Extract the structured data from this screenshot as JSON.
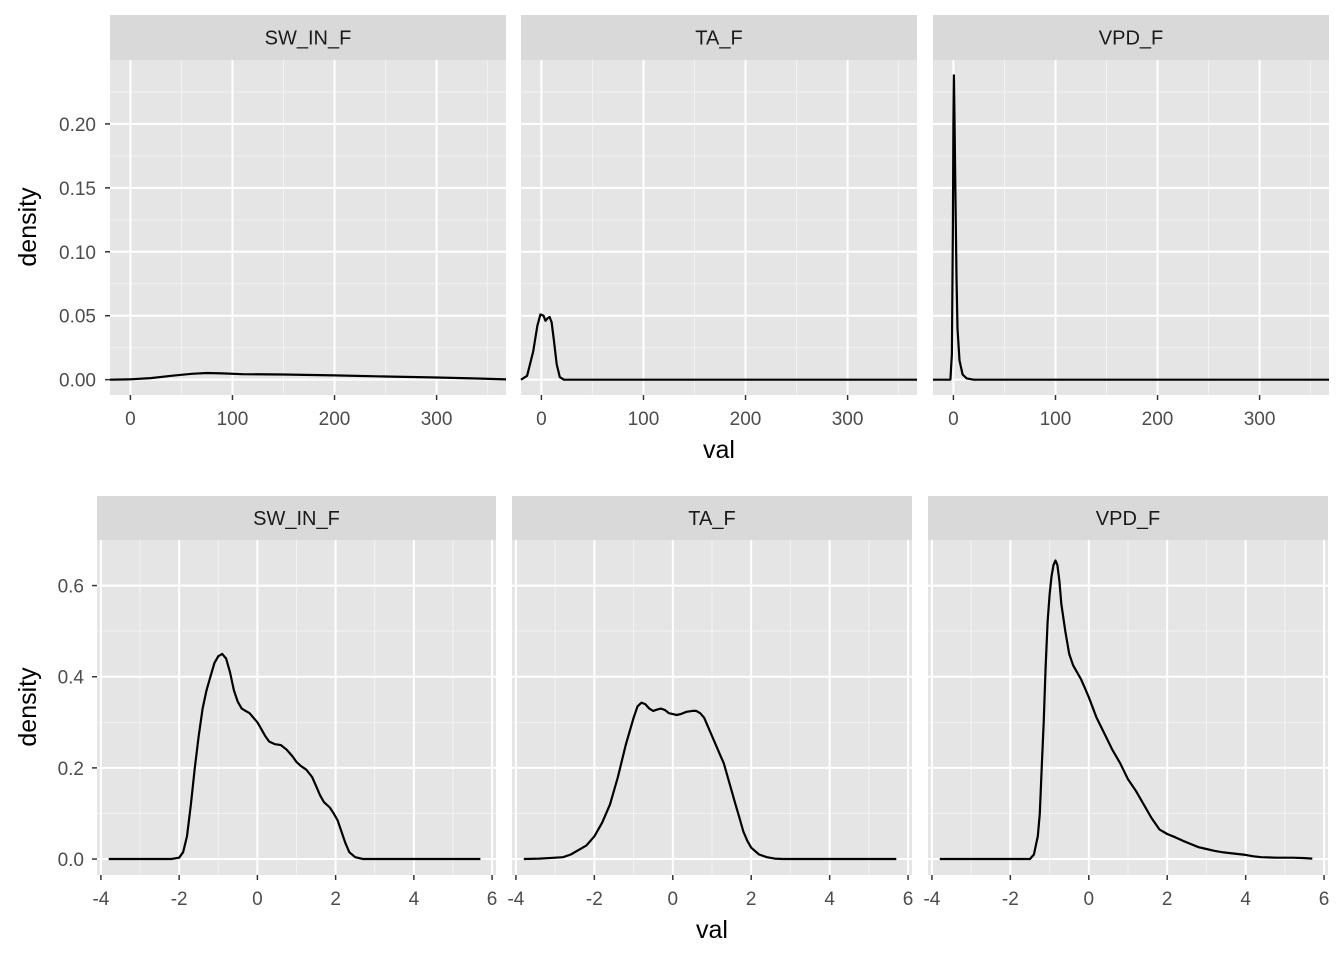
{
  "colors": {
    "panel_background": "#e5e5e5",
    "strip_background": "#d9d9d9",
    "grid_major": "#ffffff",
    "grid_minor": "#f2f2f2",
    "line": "#000000"
  },
  "chart_data": [
    {
      "type": "line",
      "title": "",
      "xlabel": "val",
      "ylabel": "density",
      "xlim": [
        -20,
        368
      ],
      "ylim": [
        -0.012,
        0.25
      ],
      "x_ticks": [
        0,
        100,
        200,
        300
      ],
      "x_tick_labels": [
        "0",
        "100",
        "200",
        "300"
      ],
      "y_ticks": [
        0,
        0.05,
        0.1,
        0.15,
        0.2
      ],
      "y_tick_labels": [
        "0.00",
        "0.05",
        "0.10",
        "0.15",
        "0.20"
      ],
      "grid": true,
      "legend": "none",
      "facets": [
        {
          "strip": "SW_IN_F",
          "points": [
            [
              -20,
              0
            ],
            [
              0,
              0.0003
            ],
            [
              20,
              0.0012
            ],
            [
              40,
              0.003
            ],
            [
              60,
              0.0046
            ],
            [
              75,
              0.0052
            ],
            [
              90,
              0.0049
            ],
            [
              110,
              0.0043
            ],
            [
              150,
              0.004
            ],
            [
              200,
              0.0033
            ],
            [
              250,
              0.0025
            ],
            [
              300,
              0.0017
            ],
            [
              340,
              0.0009
            ],
            [
              368,
              0.0002
            ]
          ]
        },
        {
          "strip": "TA_F",
          "points": [
            [
              -20,
              0
            ],
            [
              -14,
              0.003
            ],
            [
              -8,
              0.022
            ],
            [
              -4,
              0.042
            ],
            [
              -1,
              0.051
            ],
            [
              2,
              0.05
            ],
            [
              4,
              0.046
            ],
            [
              6,
              0.048
            ],
            [
              8,
              0.049
            ],
            [
              10,
              0.045
            ],
            [
              12,
              0.032
            ],
            [
              15,
              0.012
            ],
            [
              18,
              0.002
            ],
            [
              22,
              0
            ],
            [
              100,
              0
            ],
            [
              200,
              0
            ],
            [
              300,
              0
            ],
            [
              368,
              0
            ]
          ]
        },
        {
          "strip": "VPD_F",
          "points": [
            [
              -20,
              0
            ],
            [
              -3,
              0
            ],
            [
              -1.5,
              0.02
            ],
            [
              -0.5,
              0.12
            ],
            [
              0,
              0.2
            ],
            [
              0.5,
              0.238
            ],
            [
              1,
              0.21
            ],
            [
              2,
              0.14
            ],
            [
              3,
              0.08
            ],
            [
              4,
              0.04
            ],
            [
              6,
              0.015
            ],
            [
              9,
              0.004
            ],
            [
              13,
              0.001
            ],
            [
              20,
              0
            ],
            [
              100,
              0
            ],
            [
              200,
              0
            ],
            [
              300,
              0
            ],
            [
              368,
              0
            ]
          ]
        }
      ]
    },
    {
      "type": "line",
      "title": "",
      "xlabel": "val",
      "ylabel": "density",
      "xlim": [
        -4.1,
        6.1
      ],
      "ylim": [
        -0.035,
        0.7
      ],
      "x_ticks": [
        -4,
        -2,
        0,
        2,
        4,
        6
      ],
      "x_tick_labels": [
        "-4",
        "-2",
        "0",
        "2",
        "4",
        "6"
      ],
      "y_ticks": [
        0,
        0.2,
        0.4,
        0.6
      ],
      "y_tick_labels": [
        "0.0",
        "0.2",
        "0.4",
        "0.6"
      ],
      "grid": true,
      "legend": "none",
      "facets": [
        {
          "strip": "SW_IN_F",
          "points": [
            [
              -3.8,
              0
            ],
            [
              -2.2,
              0
            ],
            [
              -2,
              0.003
            ],
            [
              -1.9,
              0.015
            ],
            [
              -1.8,
              0.05
            ],
            [
              -1.7,
              0.12
            ],
            [
              -1.6,
              0.2
            ],
            [
              -1.5,
              0.27
            ],
            [
              -1.4,
              0.33
            ],
            [
              -1.3,
              0.37
            ],
            [
              -1.2,
              0.4
            ],
            [
              -1.1,
              0.43
            ],
            [
              -1.0,
              0.445
            ],
            [
              -0.9,
              0.45
            ],
            [
              -0.8,
              0.44
            ],
            [
              -0.7,
              0.41
            ],
            [
              -0.6,
              0.37
            ],
            [
              -0.5,
              0.345
            ],
            [
              -0.4,
              0.33
            ],
            [
              -0.3,
              0.325
            ],
            [
              -0.2,
              0.32
            ],
            [
              -0.1,
              0.31
            ],
            [
              0,
              0.3
            ],
            [
              0.1,
              0.285
            ],
            [
              0.2,
              0.27
            ],
            [
              0.3,
              0.258
            ],
            [
              0.45,
              0.252
            ],
            [
              0.6,
              0.25
            ],
            [
              0.75,
              0.24
            ],
            [
              0.9,
              0.225
            ],
            [
              1.0,
              0.213
            ],
            [
              1.1,
              0.205
            ],
            [
              1.25,
              0.196
            ],
            [
              1.4,
              0.18
            ],
            [
              1.5,
              0.16
            ],
            [
              1.6,
              0.14
            ],
            [
              1.7,
              0.125
            ],
            [
              1.85,
              0.113
            ],
            [
              1.95,
              0.1
            ],
            [
              2.05,
              0.085
            ],
            [
              2.15,
              0.06
            ],
            [
              2.25,
              0.035
            ],
            [
              2.35,
              0.015
            ],
            [
              2.5,
              0.004
            ],
            [
              2.7,
              0
            ],
            [
              5.7,
              0
            ]
          ]
        },
        {
          "strip": "TA_F",
          "points": [
            [
              -3.8,
              0
            ],
            [
              -3.4,
              0.001
            ],
            [
              -3.0,
              0.003
            ],
            [
              -2.8,
              0.004
            ],
            [
              -2.6,
              0.01
            ],
            [
              -2.4,
              0.02
            ],
            [
              -2.2,
              0.03
            ],
            [
              -2.0,
              0.05
            ],
            [
              -1.8,
              0.08
            ],
            [
              -1.6,
              0.12
            ],
            [
              -1.4,
              0.18
            ],
            [
              -1.2,
              0.25
            ],
            [
              -1.0,
              0.31
            ],
            [
              -0.9,
              0.335
            ],
            [
              -0.8,
              0.343
            ],
            [
              -0.7,
              0.34
            ],
            [
              -0.6,
              0.33
            ],
            [
              -0.5,
              0.325
            ],
            [
              -0.4,
              0.328
            ],
            [
              -0.3,
              0.33
            ],
            [
              -0.2,
              0.327
            ],
            [
              -0.1,
              0.32
            ],
            [
              0,
              0.318
            ],
            [
              0.1,
              0.316
            ],
            [
              0.2,
              0.318
            ],
            [
              0.35,
              0.323
            ],
            [
              0.5,
              0.325
            ],
            [
              0.6,
              0.325
            ],
            [
              0.7,
              0.32
            ],
            [
              0.8,
              0.31
            ],
            [
              0.9,
              0.29
            ],
            [
              1.0,
              0.27
            ],
            [
              1.1,
              0.25
            ],
            [
              1.2,
              0.23
            ],
            [
              1.3,
              0.21
            ],
            [
              1.4,
              0.18
            ],
            [
              1.5,
              0.15
            ],
            [
              1.6,
              0.12
            ],
            [
              1.7,
              0.09
            ],
            [
              1.8,
              0.06
            ],
            [
              1.9,
              0.04
            ],
            [
              2.0,
              0.025
            ],
            [
              2.2,
              0.01
            ],
            [
              2.4,
              0.004
            ],
            [
              2.6,
              0.001
            ],
            [
              2.8,
              0
            ],
            [
              5.7,
              0
            ]
          ]
        },
        {
          "strip": "VPD_F",
          "points": [
            [
              -3.8,
              0
            ],
            [
              -1.5,
              0
            ],
            [
              -1.4,
              0.01
            ],
            [
              -1.3,
              0.05
            ],
            [
              -1.25,
              0.1
            ],
            [
              -1.2,
              0.2
            ],
            [
              -1.15,
              0.3
            ],
            [
              -1.1,
              0.42
            ],
            [
              -1.05,
              0.52
            ],
            [
              -1.0,
              0.58
            ],
            [
              -0.95,
              0.62
            ],
            [
              -0.9,
              0.645
            ],
            [
              -0.85,
              0.655
            ],
            [
              -0.8,
              0.645
            ],
            [
              -0.75,
              0.61
            ],
            [
              -0.7,
              0.56
            ],
            [
              -0.6,
              0.5
            ],
            [
              -0.5,
              0.45
            ],
            [
              -0.4,
              0.425
            ],
            [
              -0.3,
              0.41
            ],
            [
              -0.2,
              0.395
            ],
            [
              -0.1,
              0.375
            ],
            [
              0,
              0.355
            ],
            [
              0.2,
              0.31
            ],
            [
              0.4,
              0.275
            ],
            [
              0.6,
              0.24
            ],
            [
              0.8,
              0.21
            ],
            [
              1.0,
              0.175
            ],
            [
              1.2,
              0.15
            ],
            [
              1.4,
              0.12
            ],
            [
              1.6,
              0.09
            ],
            [
              1.8,
              0.065
            ],
            [
              2.0,
              0.055
            ],
            [
              2.2,
              0.048
            ],
            [
              2.4,
              0.04
            ],
            [
              2.6,
              0.033
            ],
            [
              2.8,
              0.026
            ],
            [
              3.0,
              0.022
            ],
            [
              3.2,
              0.018
            ],
            [
              3.4,
              0.015
            ],
            [
              3.6,
              0.013
            ],
            [
              3.8,
              0.011
            ],
            [
              4.0,
              0.009
            ],
            [
              4.2,
              0.006
            ],
            [
              4.4,
              0.004
            ],
            [
              4.8,
              0.003
            ],
            [
              5.2,
              0.003
            ],
            [
              5.5,
              0.002
            ],
            [
              5.7,
              0.001
            ]
          ]
        }
      ]
    }
  ]
}
